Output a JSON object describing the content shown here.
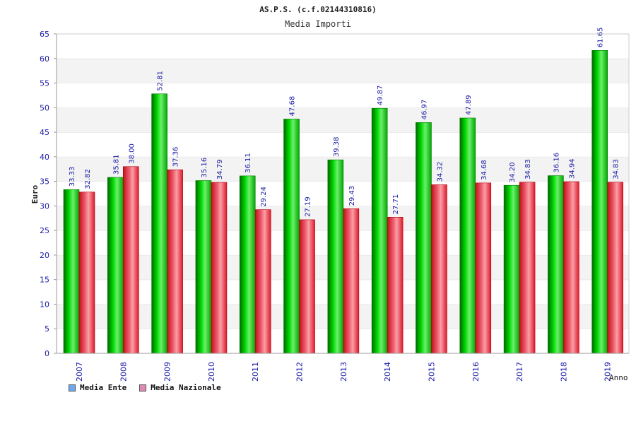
{
  "chart_data": {
    "type": "bar",
    "title": "AS.P.S. (c.f.02144310816)",
    "subtitle": "Media Importi",
    "xlabel": "Anno",
    "ylabel": "Euro",
    "ylim": [
      0,
      65
    ],
    "yticks": [
      "0",
      "5",
      "10",
      "15",
      "20",
      "25",
      "30",
      "35",
      "40",
      "45",
      "50",
      "55",
      "60",
      "65"
    ],
    "categories": [
      "2007",
      "2008",
      "2009",
      "2010",
      "2011",
      "2012",
      "2013",
      "2014",
      "2015",
      "2016",
      "2017",
      "2018",
      "2019"
    ],
    "series": [
      {
        "name": "Media Ente",
        "color": "#00c000",
        "legend_color": "#6fa8ee",
        "values": [
          33.33,
          35.81,
          52.81,
          35.16,
          36.11,
          47.68,
          39.38,
          49.87,
          46.97,
          47.89,
          34.2,
          36.16,
          61.65
        ],
        "labels": [
          "33.33",
          "35.81",
          "52.81",
          "35.16",
          "36.11",
          "47.68",
          "39.38",
          "49.87",
          "46.97",
          "47.89",
          "34.20",
          "36.16",
          "61.65"
        ]
      },
      {
        "name": "Media Nazionale",
        "color": "#e8202a",
        "legend_color": "#e089b4",
        "values": [
          32.82,
          38.0,
          37.36,
          34.79,
          29.24,
          27.19,
          29.43,
          27.71,
          34.32,
          34.68,
          34.83,
          34.94,
          34.83
        ],
        "labels": [
          "32.82",
          "38.00",
          "37.36",
          "34.79",
          "29.24",
          "27.19",
          "29.43",
          "27.71",
          "34.32",
          "34.68",
          "34.83",
          "34.94",
          "34.83"
        ]
      }
    ],
    "grid": true,
    "legend_position": "bottom-left"
  }
}
